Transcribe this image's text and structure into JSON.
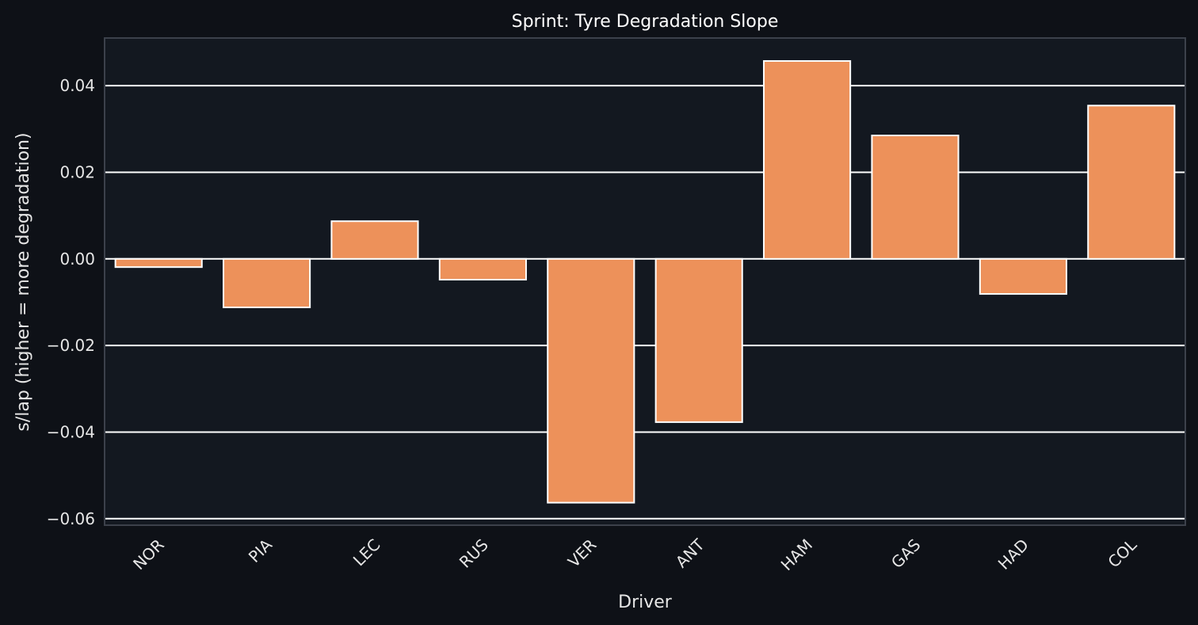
{
  "theme": {
    "figure_bg": "#0e1117",
    "axes_bg": "#131820",
    "axes_frame": "#3c414b",
    "grid": "#ffffff",
    "bar_fill": "#ed915a",
    "bar_edge": "#ffffff",
    "text": "#e6e6e6",
    "title_color": "#ffffff"
  },
  "chart_data": {
    "type": "bar",
    "title": "Sprint: Tyre Degradation Slope",
    "xlabel": "Driver",
    "ylabel": "s/lap (higher = more degradation)",
    "categories": [
      "NOR",
      "PIA",
      "LEC",
      "RUS",
      "VER",
      "ANT",
      "HAM",
      "GAS",
      "HAD",
      "COL"
    ],
    "values": [
      -0.0019,
      -0.0112,
      0.0087,
      -0.0048,
      -0.0563,
      -0.0377,
      0.0457,
      0.0285,
      -0.0081,
      0.0354
    ],
    "ylim": [
      -0.0615,
      0.051
    ],
    "yticks": [
      -0.06,
      -0.04,
      -0.02,
      0.0,
      0.02,
      0.04
    ],
    "ytick_labels": [
      "−0.06",
      "−0.04",
      "−0.02",
      "0.00",
      "0.02",
      "0.04"
    ],
    "grid": true,
    "grid_axis": "y",
    "legend": null,
    "xtick_rotation_deg": 45
  }
}
